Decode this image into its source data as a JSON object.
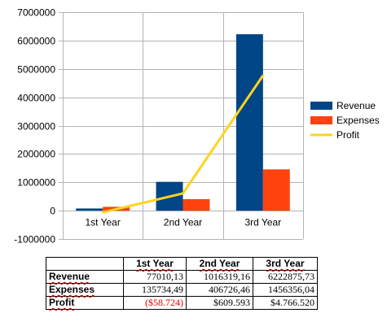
{
  "chart_data": {
    "type": "bar",
    "categories": [
      "1st Year",
      "2nd Year",
      "3rd Year"
    ],
    "series": [
      {
        "name": "Revenue",
        "kind": "bar",
        "color": "#004586",
        "values": [
          77010.13,
          1016319.16,
          6222875.73
        ]
      },
      {
        "name": "Expenses",
        "kind": "bar",
        "color": "#ff420e",
        "values": [
          135734.49,
          406726.46,
          1456356.04
        ]
      },
      {
        "name": "Profit",
        "kind": "line",
        "color": "#ffd320",
        "values": [
          -58724,
          609593,
          4766520
        ]
      }
    ],
    "ylim": [
      -1000000,
      7000000
    ],
    "yticks": [
      -1000000,
      0,
      1000000,
      2000000,
      3000000,
      4000000,
      5000000,
      6000000,
      7000000
    ],
    "ytick_labels": [
      "-1000000",
      "0",
      "1000000",
      "2000000",
      "3000000",
      "4000000",
      "5000000",
      "6000000",
      "7000000"
    ],
    "grid": true,
    "legend_position": "right"
  },
  "table": {
    "headers": [
      "1st Year",
      "2nd Year",
      "3rd Year"
    ],
    "rows": [
      {
        "label": "Revenue",
        "cells": [
          "77010,13",
          "1016319,16",
          "6222875,73"
        ]
      },
      {
        "label": "Expenses",
        "cells": [
          "135734,49",
          "406726,46",
          "1456356,04"
        ]
      },
      {
        "label": "Profit",
        "cells": [
          "($58.724)",
          "$609.593",
          "$4.766.520"
        ]
      }
    ]
  }
}
